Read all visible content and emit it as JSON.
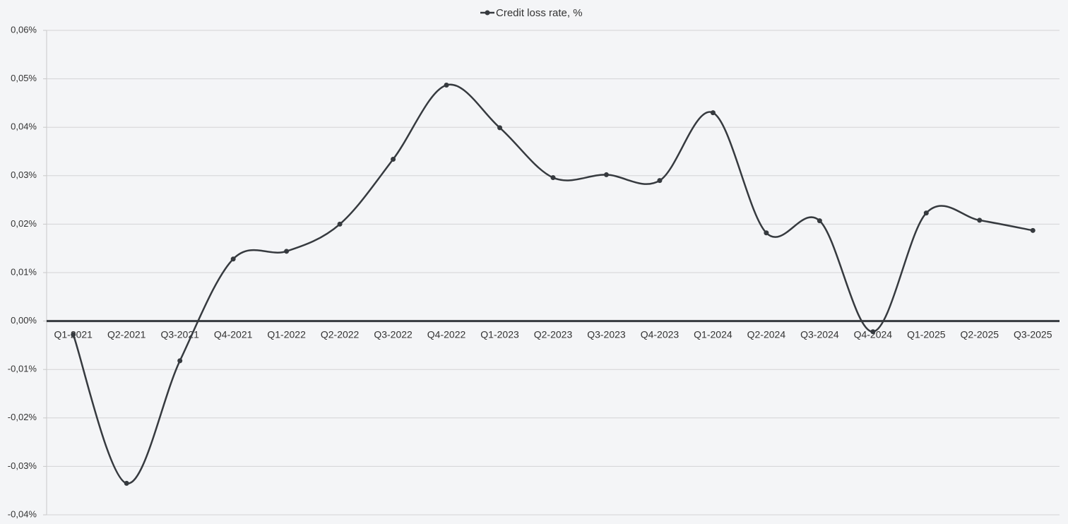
{
  "chart_data": {
    "type": "line",
    "categories": [
      "Q1-2021",
      "Q2-2021",
      "Q3-2021",
      "Q4-2021",
      "Q1-2022",
      "Q2-2022",
      "Q3-2022",
      "Q4-2022",
      "Q1-2023",
      "Q2-2023",
      "Q3-2023",
      "Q4-2023",
      "Q1-2024",
      "Q2-2024",
      "Q3-2024",
      "Q4-2024",
      "Q1-2025",
      "Q2-2025",
      "Q3-2025"
    ],
    "series": [
      {
        "name": "Credit loss rate, %",
        "color": "#363a3f",
        "values": [
          -0.0028,
          -0.0335,
          -0.0082,
          0.0128,
          0.0144,
          0.02,
          0.0334,
          0.0487,
          0.0399,
          0.0296,
          0.0302,
          0.029,
          0.043,
          0.0182,
          0.0207,
          -0.0022,
          0.0223,
          0.0208,
          0.0187
        ]
      }
    ],
    "ylim": [
      -0.04,
      0.06
    ],
    "yticks": [
      {
        "value": -0.04,
        "label": "-0,04%"
      },
      {
        "value": -0.03,
        "label": "-0,03%"
      },
      {
        "value": -0.02,
        "label": "-0,02%"
      },
      {
        "value": -0.01,
        "label": "-0,01%"
      },
      {
        "value": 0,
        "label": "0,00%"
      },
      {
        "value": 0.01,
        "label": "0,01%"
      },
      {
        "value": 0.02,
        "label": "0,02%"
      },
      {
        "value": 0.03,
        "label": "0,03%"
      },
      {
        "value": 0.04,
        "label": "0,04%"
      },
      {
        "value": 0.05,
        "label": "0,05%"
      },
      {
        "value": 0.06,
        "label": "0,06%"
      }
    ],
    "grid": true,
    "legend": "top",
    "smooth": true
  }
}
